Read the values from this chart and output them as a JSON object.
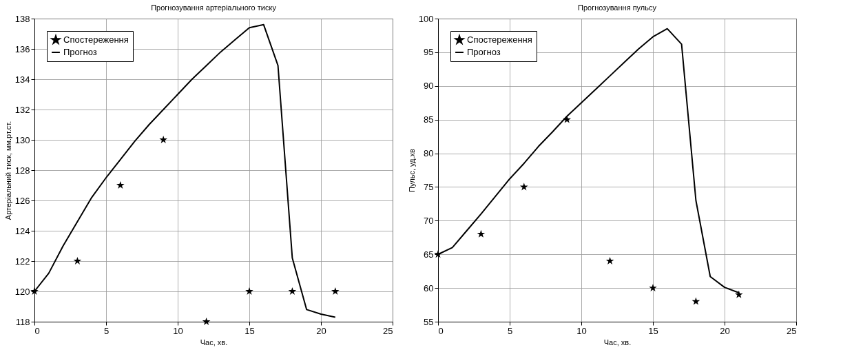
{
  "chart_data": [
    {
      "type": "line",
      "title": "Прогнозування артеріального тиску",
      "xlabel": "Час, хв.",
      "ylabel": "Артеріальний тиск, мм.рт.ст.",
      "xlim": [
        0,
        25
      ],
      "xticks": [
        0,
        5,
        10,
        15,
        20,
        25
      ],
      "ylim": [
        118,
        138
      ],
      "yticks": [
        118,
        120,
        122,
        124,
        126,
        128,
        130,
        132,
        134,
        136,
        138
      ],
      "grid": true,
      "legend": "top left",
      "series": [
        {
          "name": "Спостереження",
          "type": "scatter",
          "marker": "star",
          "color": "#000000",
          "x": [
            0,
            3,
            6,
            9,
            12,
            15,
            18,
            21
          ],
          "values": [
            120,
            122,
            127,
            130,
            118,
            120,
            120,
            120
          ]
        },
        {
          "name": "Прогноз",
          "line_style": "solid",
          "color": "#000000",
          "x": [
            0,
            1,
            2,
            3,
            4,
            5,
            6,
            7,
            8,
            9,
            10,
            11,
            12,
            13,
            14,
            15,
            16,
            17,
            18,
            19,
            20,
            21
          ],
          "values": [
            120,
            121.2,
            123,
            124.6,
            126.2,
            127.5,
            128.7,
            129.9,
            131,
            132,
            133,
            134,
            134.9,
            135.8,
            136.6,
            137.4,
            137.6,
            134.9,
            122.2,
            118.8,
            118.5,
            118.3
          ]
        }
      ]
    },
    {
      "type": "line",
      "title": "Прогнозування пульсу",
      "xlabel": "Час, хв.",
      "ylabel": "Пульс, уд.хв",
      "xlim": [
        0,
        25
      ],
      "xticks": [
        0,
        5,
        10,
        15,
        20,
        25
      ],
      "ylim": [
        55,
        100
      ],
      "yticks": [
        55,
        60,
        65,
        70,
        75,
        80,
        85,
        90,
        95,
        100
      ],
      "grid": true,
      "legend": "top left",
      "series": [
        {
          "name": "Спостереження",
          "type": "scatter",
          "marker": "star",
          "color": "#000000",
          "x": [
            0,
            3,
            6,
            9,
            12,
            15,
            18,
            21
          ],
          "values": [
            65,
            68,
            75,
            85,
            64,
            60,
            58,
            59
          ]
        },
        {
          "name": "Прогноз",
          "line_style": "solid",
          "color": "#000000",
          "x": [
            0,
            1,
            2,
            3,
            4,
            5,
            6,
            7,
            8,
            9,
            10,
            11,
            12,
            13,
            14,
            15,
            16,
            17,
            18,
            19,
            20,
            21
          ],
          "values": [
            65,
            66,
            68.5,
            71,
            73.6,
            76.2,
            78.5,
            81,
            83.2,
            85.5,
            87.5,
            89.5,
            91.5,
            93.5,
            95.5,
            97.3,
            98.5,
            96.2,
            73,
            61.7,
            60.1,
            59.3
          ]
        }
      ]
    }
  ]
}
